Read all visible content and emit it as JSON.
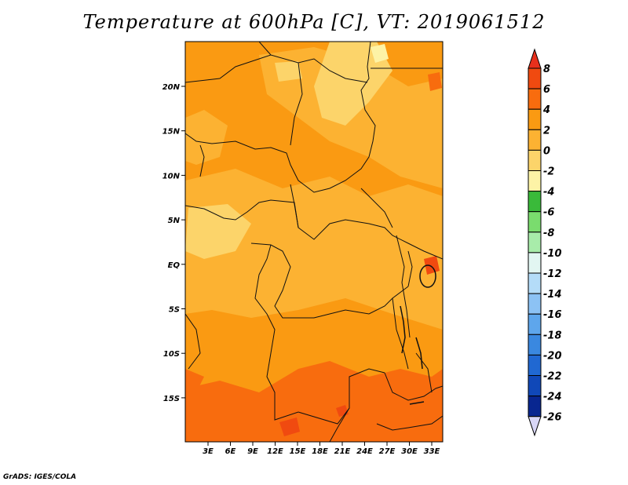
{
  "title": "Temperature at 600hPa [C], VT: 2019061512",
  "footer": "GrADS: IGES/COLA",
  "map": {
    "lon_labels": [
      "3E",
      "6E",
      "9E",
      "12E",
      "15E",
      "18E",
      "21E",
      "24E",
      "27E",
      "30E",
      "33E"
    ],
    "lat_labels": [
      "20N",
      "15N",
      "10N",
      "5N",
      "EQ",
      "5S",
      "10S",
      "15S"
    ]
  },
  "colorbar": {
    "labels": [
      "8",
      "6",
      "4",
      "2",
      "0",
      "-2",
      "-4",
      "-6",
      "-8",
      "-10",
      "-12",
      "-14",
      "-16",
      "-18",
      "-20",
      "-22",
      "-24",
      "-26"
    ],
    "colors": {
      "top_arrow": "#e8301c",
      "c_6_8": "#f04a10",
      "c_4_6": "#f86c0e",
      "c_2_4": "#fa9a12",
      "c_0_2": "#fcb232",
      "c_m2_0": "#fcd46a",
      "c_m4_m2": "#fdf3a6",
      "c_m6_m4": "#3aba3a",
      "c_m8_m6": "#7adc6e",
      "c_m10_m8": "#a8ecaa",
      "c_m12_m10": "#e2f6f2",
      "c_m14_m12": "#b4dcf8",
      "c_m16_m14": "#8cc2f4",
      "c_m18_m16": "#5ea6ec",
      "c_m20_m18": "#3a88e0",
      "c_m22_m20": "#2068d2",
      "c_m24_m22": "#1048b8",
      "c_m26_m24": "#082690",
      "bottom_arrow": "#d8d6f6"
    }
  }
}
